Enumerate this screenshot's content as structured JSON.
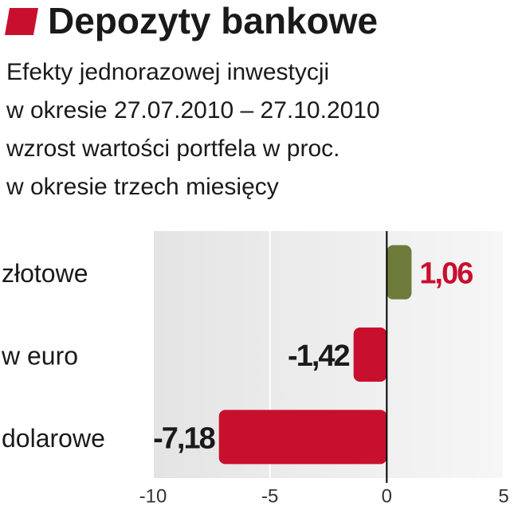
{
  "chart_data": {
    "type": "bar",
    "orientation": "horizontal",
    "title": "Depozyty bankowe",
    "subtitle": [
      "Efekty jednorazowej inwestycji",
      "w okresie 27.07.2010 – 27.10.2010",
      "wzrost wartości portfela w proc.",
      "w okresie trzech miesięcy"
    ],
    "categories": [
      "złotowe",
      "w euro",
      "dolarowe"
    ],
    "values": [
      1.06,
      -1.42,
      -7.18
    ],
    "value_labels": [
      "1,06",
      "-1,42",
      "-7,18"
    ],
    "colors": [
      "#6d7b3b",
      "#c8102e",
      "#c8102e"
    ],
    "xlim": [
      -10,
      5
    ],
    "xticks": [
      -10,
      -5,
      0,
      5
    ]
  }
}
